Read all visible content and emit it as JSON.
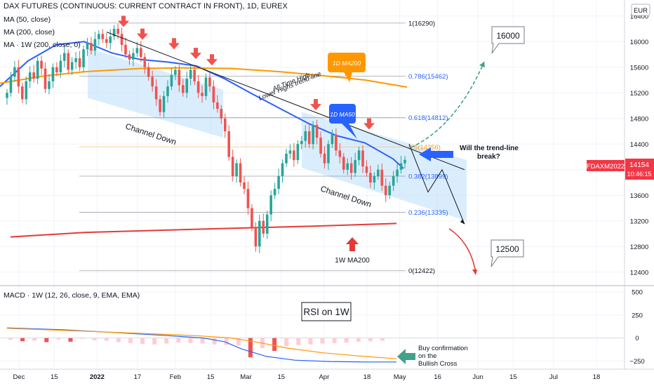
{
  "header": {
    "title": "DAX FUTURES (CONTINUOUS: CURRENT CONTRACT IN FRONT), 1D, EUREX",
    "studies": [
      "MA (50, close)",
      "MA (200, close)",
      "MA · 1W (200, close, 0)"
    ],
    "currency": "EUR"
  },
  "price_badge": {
    "symbol": "FDAXM2022",
    "price": "14154",
    "countdown": "10:46:15"
  },
  "macd_legend": "MACD · 1W (12, 26, close, 9, EMA, EMA)",
  "annotations": {
    "channel_down_1": "Channel Down",
    "channel_down_2": "Channel Down",
    "trendline_line1": "All Time High",
    "trendline_line2": "Lower Highs trend-line",
    "ma50_tag": "1D MA50",
    "ma200_tag": "1D MA200",
    "ma200w_tag": "1W MA200",
    "question_line1": "Will the trend-line",
    "question_line2": "break?",
    "target_up": "16000",
    "target_down": "12500",
    "rsi_box": "RSI on 1W",
    "buy_line1": "Buy confirmation",
    "buy_line2": "on the",
    "buy_line3": "Bullish Cross"
  },
  "colors": {
    "up": "#26a69a",
    "down": "#ef5350",
    "ma50": "#2962ff",
    "ma200": "#ff9800",
    "ma200w": "#e53935",
    "channel": "#bbdefb",
    "fib": "#787b86",
    "fib_text": "#2962ff",
    "macd_line": "#2962ff",
    "signal_line": "#ff9800",
    "hist_strong": "#ef5350",
    "hist_light": "#ffcdd2",
    "arrow_green": "#43a08a",
    "badge": "#f23645"
  },
  "chart_data": [
    {
      "type": "candlestick",
      "title": "DAX FUTURES (CONTINUOUS: CURRENT CONTRACT IN FRONT), 1D, EUREX",
      "y_ticks": [
        16400,
        16000,
        15600,
        15200,
        14800,
        14400,
        14000,
        13600,
        13200,
        12800,
        12400
      ],
      "ylim": [
        12200,
        16650
      ],
      "x_ticks": [
        {
          "label": "Dec",
          "date": "2021-12-01"
        },
        {
          "label": "15",
          "date": "2021-12-15"
        },
        {
          "label": "2022",
          "date": "2022-01-01"
        },
        {
          "label": "17",
          "date": "2022-01-17"
        },
        {
          "label": "Feb",
          "date": "2022-02-01"
        },
        {
          "label": "15",
          "date": "2022-02-15"
        },
        {
          "label": "Mar",
          "date": "2022-03-01"
        },
        {
          "label": "15",
          "date": "2022-03-15"
        },
        {
          "label": "Apr",
          "date": "2022-04-01"
        },
        {
          "label": "18",
          "date": "2022-04-18"
        },
        {
          "label": "May",
          "date": "2022-05-01"
        },
        {
          "label": "16",
          "date": "2022-05-16"
        },
        {
          "label": "Jun",
          "date": "2022-06-01"
        },
        {
          "label": "15",
          "date": "2022-06-15"
        },
        {
          "label": "Jul",
          "date": "2022-07-01"
        },
        {
          "label": "18",
          "date": "2022-07-18"
        }
      ],
      "closes": [
        15200,
        15450,
        15600,
        15300,
        15100,
        15380,
        15520,
        15420,
        15700,
        15580,
        15260,
        15380,
        15600,
        15520,
        15700,
        15820,
        15560,
        15680,
        15740,
        15600,
        15880,
        15980,
        15860,
        16040,
        16120,
        16040,
        15980,
        16080,
        16200,
        16120,
        15950,
        15800,
        15720,
        15820,
        15900,
        15760,
        15600,
        15450,
        15300,
        15100,
        14900,
        15150,
        15300,
        15480,
        15560,
        15320,
        15200,
        15420,
        15560,
        15380,
        15200,
        15150,
        15440,
        15300,
        15050,
        14950,
        14800,
        14600,
        14200,
        13900,
        14100,
        13800,
        13700,
        13400,
        13100,
        12800,
        13200,
        13000,
        13300,
        13600,
        13700,
        13900,
        14100,
        14250,
        14300,
        14150,
        14400,
        14450,
        14600,
        14400,
        14700,
        14500,
        14250,
        14100,
        14400,
        14550,
        14300,
        14200,
        14000,
        14100,
        13950,
        14150,
        14300,
        14050,
        13950,
        13800,
        13900,
        14000,
        13750,
        13600,
        13750,
        13900,
        14000,
        14100,
        14154
      ],
      "series": [
        {
          "name": "MA (50, close)",
          "points": [
            [
              0,
              15300
            ],
            [
              40,
              15700
            ],
            [
              80,
              15950
            ],
            [
              120,
              16000
            ],
            [
              160,
              15820
            ],
            [
              200,
              15720
            ],
            [
              240,
              15680
            ],
            [
              280,
              15620
            ],
            [
              320,
              15420
            ],
            [
              360,
              15180
            ],
            [
              400,
              14950
            ],
            [
              440,
              14720
            ],
            [
              480,
              14530
            ],
            [
              520,
              14420
            ],
            [
              560,
              14170
            ],
            [
              575,
              14020
            ]
          ]
        },
        {
          "name": "MA (200, close)",
          "points": [
            [
              0,
              15350
            ],
            [
              60,
              15460
            ],
            [
              120,
              15530
            ],
            [
              200,
              15580
            ],
            [
              260,
              15590
            ],
            [
              330,
              15580
            ],
            [
              400,
              15530
            ],
            [
              460,
              15470
            ],
            [
              520,
              15400
            ],
            [
              580,
              15290
            ]
          ]
        },
        {
          "name": "MA · 1W (200, close, 0)",
          "points": [
            [
              15,
              12950
            ],
            [
              120,
              13020
            ],
            [
              250,
              13060
            ],
            [
              350,
              13090
            ],
            [
              450,
              13120
            ],
            [
              565,
              13160
            ]
          ]
        }
      ],
      "fib_levels": [
        {
          "label": "1(16290)",
          "value": 16290
        },
        {
          "label": "0.786(15462)",
          "value": 15462
        },
        {
          "label": "0.618(14812)",
          "value": 14812
        },
        {
          "label": "0.5(14356)",
          "value": 14356
        },
        {
          "label": "0.382(13899)",
          "value": 13899
        },
        {
          "label": "0.236(13335)",
          "value": 13335
        },
        {
          "label": "0(12422)",
          "value": 12422
        }
      ],
      "trend_line": [
        [
          152,
          16150
        ],
        [
          662,
          14000
        ]
      ],
      "channel_1": [
        [
          [
            125,
            15900
          ],
          [
            318,
            15250
          ]
        ],
        [
          [
            125,
            15120
          ],
          [
            318,
            14500
          ]
        ]
      ],
      "channel_2": [
        [
          [
            430,
            14900
          ],
          [
            665,
            14150
          ]
        ],
        [
          [
            430,
            14030
          ],
          [
            665,
            13200
          ]
        ]
      ],
      "projection": [
        [
          583,
          14400
        ],
        [
          610,
          13650
        ],
        [
          630,
          14000
        ],
        [
          662,
          13150
        ]
      ],
      "red_arrows": [
        [
          176,
          16250
        ],
        [
          203,
          16050
        ],
        [
          248,
          15900
        ],
        [
          279,
          15750
        ],
        [
          302,
          15650
        ],
        [
          450,
          14950
        ],
        [
          526,
          14650
        ]
      ]
    },
    {
      "type": "bar",
      "title": "MACD · 1W (12, 26, close, 9, EMA, EMA)",
      "y_ticks": [
        500,
        250,
        0,
        -250
      ],
      "ylim": [
        -330,
        560
      ],
      "histogram": [
        -20,
        -35,
        -28,
        -45,
        -15,
        -40,
        -10,
        -25,
        -30,
        -45,
        -55,
        -65,
        -70,
        -60,
        -50,
        -55,
        -60,
        -70,
        -75,
        -80,
        -210,
        -110,
        -140,
        -90,
        -75,
        -70,
        -60,
        -55,
        -50,
        -40,
        -35,
        -30
      ],
      "histogram_strong": [
        false,
        true,
        false,
        true,
        false,
        true,
        false,
        false,
        false,
        false,
        false,
        false,
        false,
        false,
        false,
        false,
        false,
        false,
        false,
        false,
        true,
        false,
        true,
        false,
        false,
        false,
        false,
        false,
        false,
        false,
        false,
        false
      ],
      "macd_line": [
        [
          10,
          110
        ],
        [
          90,
          90
        ],
        [
          160,
          60
        ],
        [
          230,
          30
        ],
        [
          290,
          0
        ],
        [
          320,
          -40
        ],
        [
          345,
          -120
        ],
        [
          380,
          -200
        ],
        [
          420,
          -240
        ],
        [
          470,
          -255
        ],
        [
          520,
          -260
        ],
        [
          565,
          -260
        ]
      ],
      "signal_line": [
        [
          10,
          105
        ],
        [
          100,
          80
        ],
        [
          200,
          50
        ],
        [
          280,
          25
        ],
        [
          330,
          0
        ],
        [
          370,
          -50
        ],
        [
          410,
          -110
        ],
        [
          460,
          -160
        ],
        [
          520,
          -200
        ],
        [
          565,
          -225
        ]
      ]
    }
  ]
}
